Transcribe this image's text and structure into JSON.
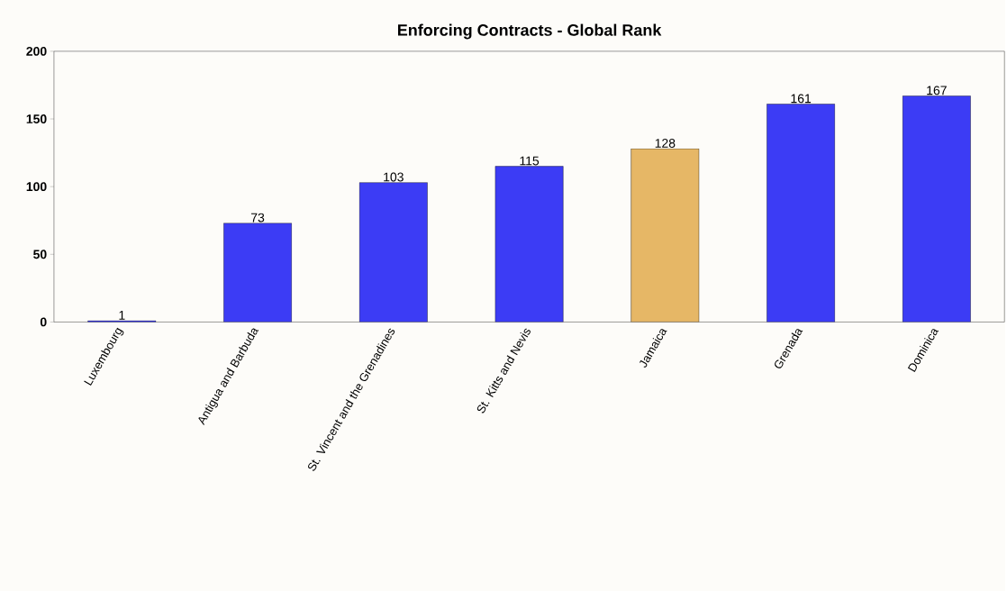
{
  "chart_data": {
    "type": "bar",
    "title": "Enforcing Contracts - Global Rank",
    "categories": [
      "Luxembourg",
      "Antigua and Barbuda",
      "St. Vincent and the Grenadines",
      "St. Kitts and Nevis",
      "Jamaica",
      "Grenada",
      "Dominica"
    ],
    "values": [
      1,
      73,
      103,
      115,
      128,
      161,
      167
    ],
    "colors": [
      "#3c3cf5",
      "#3c3cf5",
      "#3c3cf5",
      "#3c3cf5",
      "#e6b766",
      "#3c3cf5",
      "#3c3cf5"
    ],
    "ylim": [
      0,
      200
    ],
    "yticks": [
      0,
      50,
      100,
      150,
      200
    ],
    "data_labels": true,
    "grid": false
  }
}
